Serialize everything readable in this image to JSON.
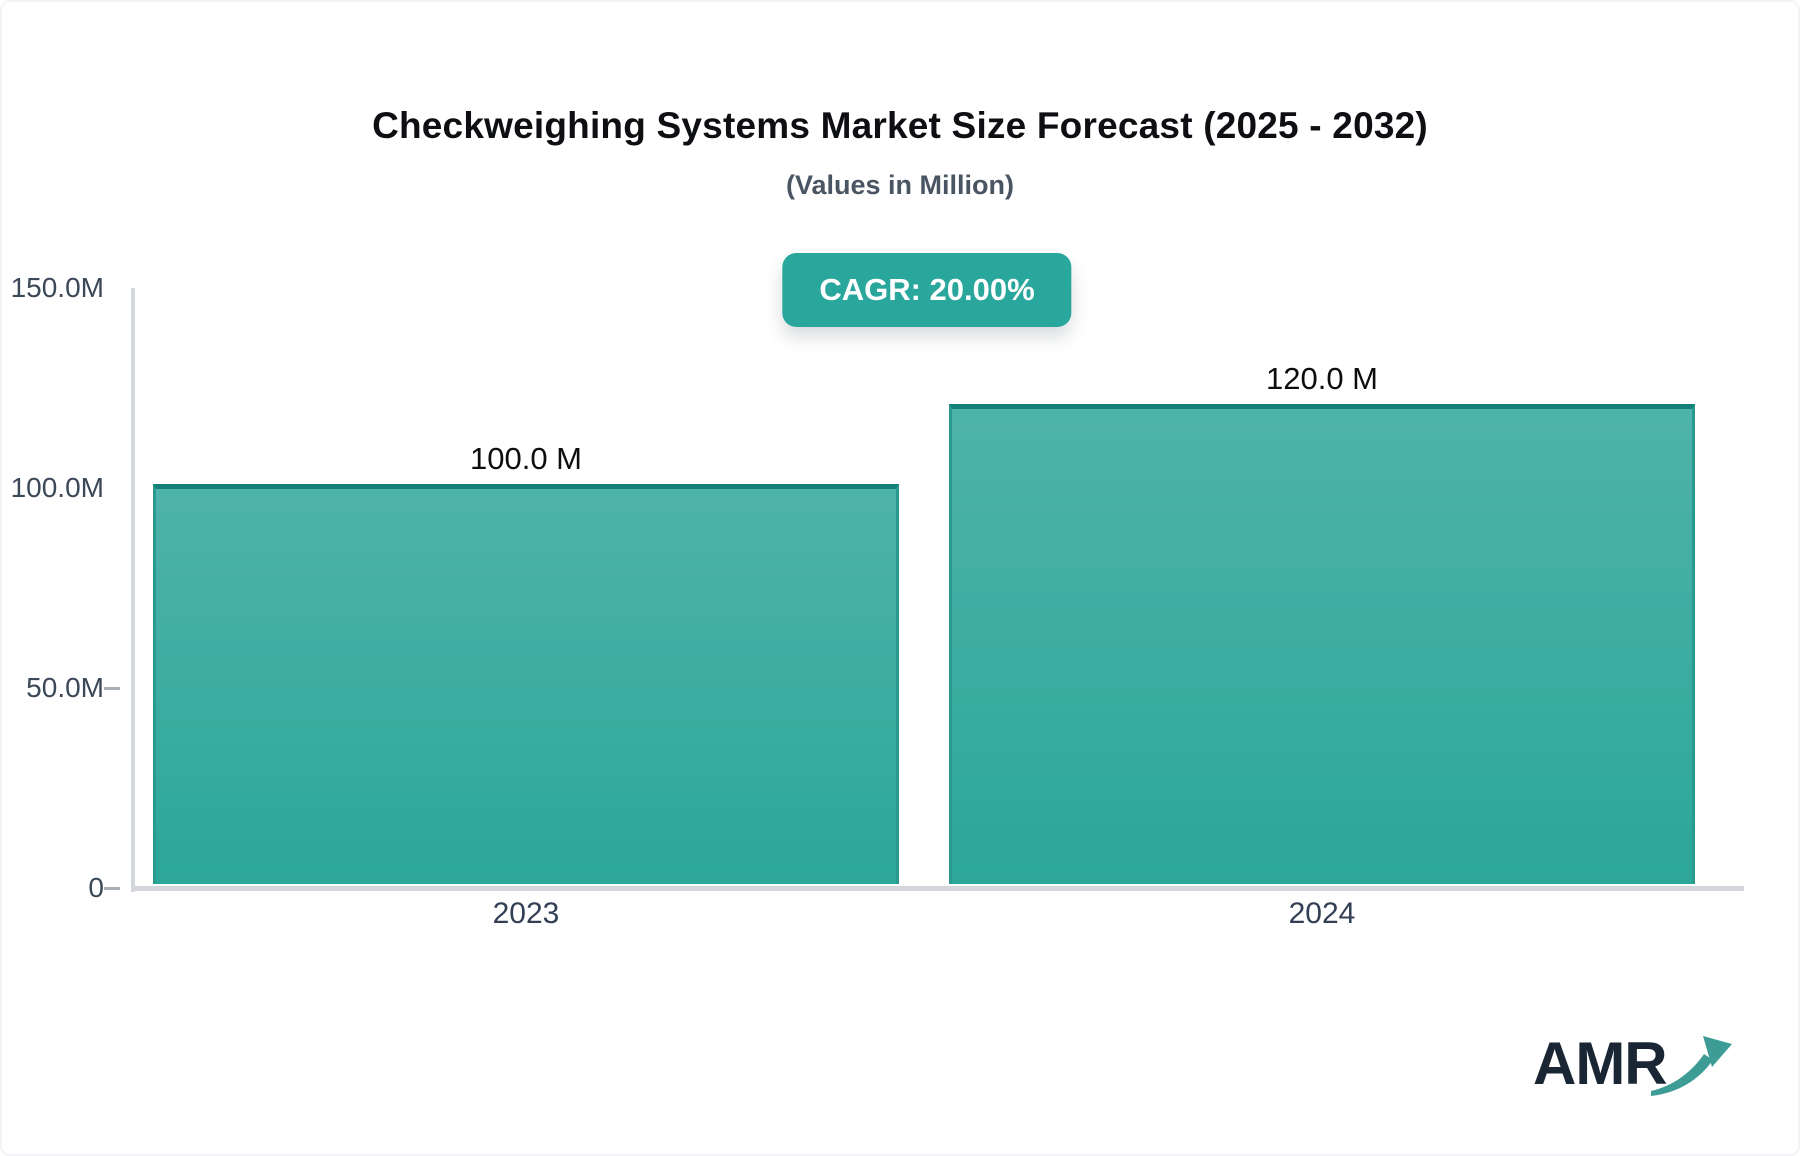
{
  "header": {
    "title": "Checkweighing Systems Market Size Forecast (2025 - 2032)",
    "subtitle": "(Values in Million)"
  },
  "badge": {
    "label": "CAGR: 20.00%",
    "background": "#2aa79c",
    "text_color": "#ffffff"
  },
  "chart_data": {
    "type": "bar",
    "title": "Checkweighing Systems Market Size Forecast (2025 - 2032)",
    "subtitle": "(Values in Million)",
    "categories": [
      "2023",
      "2024"
    ],
    "values": [
      100.0,
      120.0
    ],
    "value_labels": [
      "100.0 M",
      "120.0 M"
    ],
    "cagr_percent": 20.0,
    "xlabel": "",
    "ylabel": "",
    "ylim": [
      0,
      150
    ],
    "yticks": [
      {
        "value": 150,
        "label": "150.0M",
        "dash": false
      },
      {
        "value": 100,
        "label": "100.0M",
        "dash": false
      },
      {
        "value": 50,
        "label": "50.0M",
        "dash": true
      },
      {
        "value": 0,
        "label": "0",
        "dash": true
      }
    ],
    "grid": false,
    "legend": false,
    "bar_color_top": "#4fb3aa",
    "bar_color_bottom": "#2ba79a",
    "bar_border_top": "#128079",
    "axis_color": "#d3d6db"
  },
  "logo": {
    "text": "AMR",
    "color": "#1b2634",
    "arrow_color": "#3d9d96"
  }
}
